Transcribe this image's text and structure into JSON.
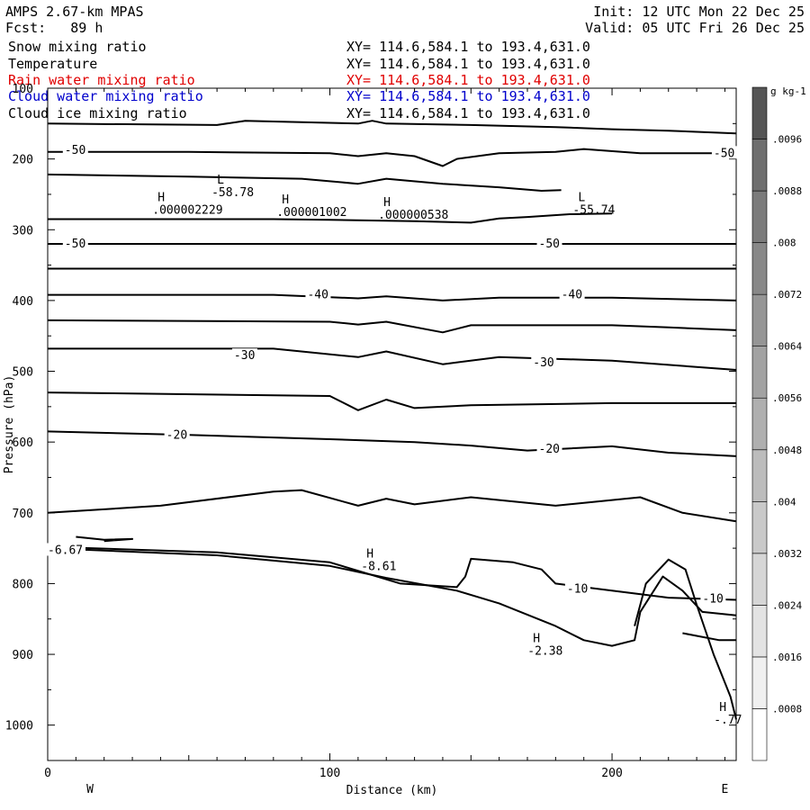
{
  "header": {
    "model": "AMPS 2.67-km MPAS",
    "fcst_label": "Fcst:",
    "fcst_value": "89 h",
    "init": "Init: 12 UTC Mon 22 Dec 25",
    "valid": "Valid: 05 UTC Fri 26 Dec 25"
  },
  "fields": [
    {
      "name": "Snow mixing ratio",
      "xy": "XY= 114.6,584.1 to 193.4,631.0",
      "color": "#000000"
    },
    {
      "name": "Temperature",
      "xy": "XY= 114.6,584.1 to 193.4,631.0",
      "color": "#000000"
    },
    {
      "name": "Rain water mixing ratio",
      "xy": "XY= 114.6,584.1 to 193.4,631.0",
      "color": "#e00000"
    },
    {
      "name": "Cloud water mixing ratio",
      "xy": "XY= 114.6,584.1 to 193.4,631.0",
      "color": "#0000cc"
    },
    {
      "name": "Cloud ice mixing ratio",
      "xy": "XY= 114.6,584.1 to 193.4,631.0",
      "color": "#000000"
    }
  ],
  "chart_data": {
    "type": "line",
    "xlabel": "Distance (km)",
    "ylabel": "Pressure (hPa)",
    "xlim": [
      0,
      244
    ],
    "ylim": [
      1050,
      100
    ],
    "y_scale": "linear-reversed",
    "x_ticks": [
      0,
      100,
      200
    ],
    "y_ticks": [
      100,
      200,
      300,
      400,
      500,
      600,
      700,
      800,
      900,
      1000
    ],
    "x_end_labels": [
      "W",
      "E"
    ],
    "colorbar": {
      "unit": "g kg-1",
      "labels": [
        ".0008",
        ".0016",
        ".0024",
        ".0032",
        ".004",
        ".0048",
        ".0056",
        ".0064",
        ".0072",
        ".008",
        ".0088",
        ".0096"
      ],
      "shades": [
        "#ffffff",
        "#f0f0f0",
        "#e3e3e3",
        "#d6d6d6",
        "#c9c9c9",
        "#bcbcbc",
        "#afafaf",
        "#a2a2a2",
        "#959595",
        "#888888",
        "#7b7b7b",
        "#6e6e6e",
        "#555555"
      ]
    },
    "isotherms": [
      {
        "pts": [
          [
            0,
            150
          ],
          [
            60,
            152
          ],
          [
            70,
            146
          ],
          [
            90,
            148
          ],
          [
            110,
            150
          ],
          [
            115,
            146
          ],
          [
            120,
            150
          ],
          [
            150,
            152
          ],
          [
            180,
            155
          ],
          [
            200,
            158
          ],
          [
            220,
            160
          ],
          [
            244,
            164
          ]
        ]
      },
      {
        "pts": [
          [
            0,
            190
          ],
          [
            50,
            190
          ],
          [
            100,
            192
          ],
          [
            110,
            196
          ],
          [
            120,
            192
          ],
          [
            130,
            196
          ],
          [
            140,
            210
          ],
          [
            145,
            200
          ],
          [
            160,
            192
          ],
          [
            180,
            190
          ],
          [
            190,
            186
          ],
          [
            210,
            192
          ],
          [
            244,
            192
          ]
        ]
      },
      {
        "pts": [
          [
            0,
            222
          ],
          [
            50,
            225
          ],
          [
            90,
            228
          ],
          [
            110,
            235
          ],
          [
            120,
            228
          ],
          [
            140,
            235
          ],
          [
            160,
            240
          ],
          [
            175,
            245
          ],
          [
            182,
            244
          ]
        ]
      },
      {
        "pts": [
          [
            0,
            285
          ],
          [
            80,
            285
          ],
          [
            100,
            286
          ],
          [
            130,
            288
          ],
          [
            150,
            290
          ],
          [
            160,
            284
          ],
          [
            170,
            282
          ],
          [
            185,
            278
          ],
          [
            200,
            277
          ]
        ]
      },
      {
        "pts": [
          [
            0,
            320
          ],
          [
            100,
            320
          ],
          [
            200,
            320
          ],
          [
            244,
            320
          ]
        ]
      },
      {
        "pts": [
          [
            0,
            355
          ],
          [
            100,
            355
          ],
          [
            200,
            355
          ],
          [
            244,
            355
          ]
        ]
      },
      {
        "pts": [
          [
            0,
            392
          ],
          [
            80,
            392
          ],
          [
            110,
            397
          ],
          [
            120,
            394
          ],
          [
            140,
            400
          ],
          [
            160,
            396
          ],
          [
            200,
            396
          ],
          [
            244,
            400
          ]
        ]
      },
      {
        "pts": [
          [
            0,
            428
          ],
          [
            100,
            430
          ],
          [
            110,
            434
          ],
          [
            120,
            430
          ],
          [
            140,
            445
          ],
          [
            150,
            435
          ],
          [
            200,
            435
          ],
          [
            220,
            438
          ],
          [
            244,
            442
          ]
        ]
      },
      {
        "pts": [
          [
            0,
            468
          ],
          [
            80,
            468
          ],
          [
            110,
            480
          ],
          [
            120,
            472
          ],
          [
            140,
            490
          ],
          [
            160,
            480
          ],
          [
            200,
            485
          ],
          [
            244,
            498
          ]
        ]
      },
      {
        "pts": [
          [
            0,
            530
          ],
          [
            100,
            535
          ],
          [
            110,
            555
          ],
          [
            120,
            540
          ],
          [
            130,
            552
          ],
          [
            150,
            548
          ],
          [
            200,
            545
          ],
          [
            244,
            545
          ]
        ]
      },
      {
        "pts": [
          [
            0,
            585
          ],
          [
            50,
            590
          ],
          [
            100,
            596
          ],
          [
            130,
            600
          ],
          [
            150,
            605
          ],
          [
            170,
            612
          ],
          [
            200,
            606
          ],
          [
            220,
            615
          ],
          [
            244,
            620
          ]
        ]
      },
      {
        "pts": [
          [
            0,
            700
          ],
          [
            40,
            690
          ],
          [
            80,
            670
          ],
          [
            90,
            668
          ],
          [
            110,
            690
          ],
          [
            120,
            680
          ],
          [
            130,
            688
          ],
          [
            150,
            678
          ],
          [
            180,
            690
          ],
          [
            210,
            678
          ],
          [
            225,
            700
          ],
          [
            244,
            712
          ]
        ]
      },
      {
        "pts": [
          [
            0,
            750
          ],
          [
            60,
            760
          ],
          [
            100,
            775
          ],
          [
            120,
            792
          ],
          [
            145,
            810
          ],
          [
            160,
            828
          ],
          [
            180,
            860
          ],
          [
            190,
            880
          ],
          [
            200,
            888
          ],
          [
            208,
            880
          ],
          [
            210,
            840
          ],
          [
            218,
            790
          ],
          [
            225,
            810
          ],
          [
            232,
            840
          ],
          [
            244,
            845
          ]
        ]
      },
      {
        "pts": [
          [
            0,
            748
          ],
          [
            60,
            756
          ],
          [
            100,
            770
          ],
          [
            125,
            800
          ],
          [
            145,
            805
          ],
          [
            148,
            790
          ],
          [
            150,
            765
          ],
          [
            165,
            770
          ],
          [
            175,
            780
          ],
          [
            180,
            800
          ],
          [
            200,
            810
          ],
          [
            220,
            820
          ],
          [
            244,
            823
          ]
        ]
      },
      {
        "pts": [
          [
            208,
            860
          ],
          [
            212,
            800
          ],
          [
            220,
            766
          ],
          [
            226,
            780
          ],
          [
            230,
            830
          ],
          [
            236,
            900
          ],
          [
            242,
            960
          ],
          [
            244,
            992
          ]
        ]
      },
      {
        "pts": [
          [
            225,
            870
          ],
          [
            238,
            880
          ],
          [
            244,
            880
          ]
        ]
      },
      {
        "pts": [
          [
            10,
            734
          ],
          [
            20,
            738
          ],
          [
            30,
            737
          ],
          [
            20,
            740
          ]
        ]
      }
    ],
    "contour_labels": [
      {
        "text": "-50",
        "x": 6,
        "y": 188
      },
      {
        "text": "-50",
        "x": 236,
        "y": 192
      },
      {
        "text": "-50",
        "x": 6,
        "y": 320
      },
      {
        "text": "-50",
        "x": 174,
        "y": 320
      },
      {
        "text": "-40",
        "x": 92,
        "y": 392
      },
      {
        "text": "-40",
        "x": 182,
        "y": 392
      },
      {
        "text": "-30",
        "x": 66,
        "y": 478
      },
      {
        "text": "-30",
        "x": 172,
        "y": 488
      },
      {
        "text": "-20",
        "x": 42,
        "y": 590
      },
      {
        "text": "-20",
        "x": 174,
        "y": 610
      },
      {
        "text": "-10",
        "x": 184,
        "y": 808
      },
      {
        "text": "-10",
        "x": 232,
        "y": 822
      },
      {
        "text": "-6.67",
        "x": 0,
        "y": 753
      }
    ],
    "hl_markers": [
      {
        "mark": "L",
        "value": "-58.78",
        "x": 60,
        "y": 240
      },
      {
        "mark": "H",
        "value": ".000002229",
        "x": 39,
        "y": 265
      },
      {
        "mark": "H",
        "value": ".000001002",
        "x": 83,
        "y": 268
      },
      {
        "mark": "H",
        "value": ".000000538",
        "x": 119,
        "y": 272
      },
      {
        "mark": "L",
        "value": "-55.74",
        "x": 188,
        "y": 265
      },
      {
        "mark": "H",
        "value": "-8.61",
        "x": 113,
        "y": 768
      },
      {
        "mark": "H",
        "value": "-2.38",
        "x": 172,
        "y": 888
      },
      {
        "mark": "H",
        "value": "-.77",
        "x": 238,
        "y": 985
      }
    ]
  }
}
